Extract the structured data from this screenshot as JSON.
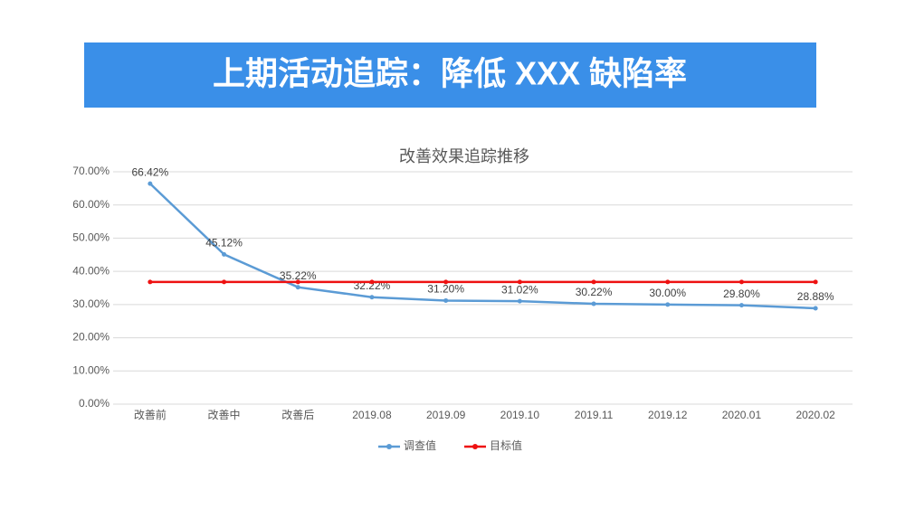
{
  "header": {
    "title": "上期活动追踪：降低 XXX 缺陷率"
  },
  "chart_data": {
    "type": "line",
    "title": "改善效果追踪推移",
    "categories": [
      "改善前",
      "改善中",
      "改善后",
      "2019.08",
      "2019.09",
      "2019.10",
      "2019.11",
      "2019.12",
      "2020.01",
      "2020.02"
    ],
    "series": [
      {
        "name": "调查值",
        "color": "#5b9bd5",
        "values": [
          66.42,
          45.12,
          35.22,
          32.22,
          31.2,
          31.02,
          30.22,
          30.0,
          29.8,
          28.88
        ],
        "value_labels": [
          "66.42%",
          "45.12%",
          "35.22%",
          "32.22%",
          "31.20%",
          "31.02%",
          "30.22%",
          "30.00%",
          "29.80%",
          "28.88%"
        ]
      },
      {
        "name": "目标值",
        "color": "#ee1111",
        "values": [
          36.8,
          36.8,
          36.8,
          36.8,
          36.8,
          36.8,
          36.8,
          36.8,
          36.8,
          36.8
        ]
      }
    ],
    "ylim": [
      0,
      70
    ],
    "yticks": [
      {
        "value": 0,
        "label": "0.00%"
      },
      {
        "value": 10,
        "label": "10.00%"
      },
      {
        "value": 20,
        "label": "20.00%"
      },
      {
        "value": 30,
        "label": "30.00%"
      },
      {
        "value": 40,
        "label": "40.00%"
      },
      {
        "value": 50,
        "label": "50.00%"
      },
      {
        "value": 60,
        "label": "60.00%"
      },
      {
        "value": 70,
        "label": "70.00%"
      }
    ],
    "grid": true,
    "legend": "bottom"
  }
}
